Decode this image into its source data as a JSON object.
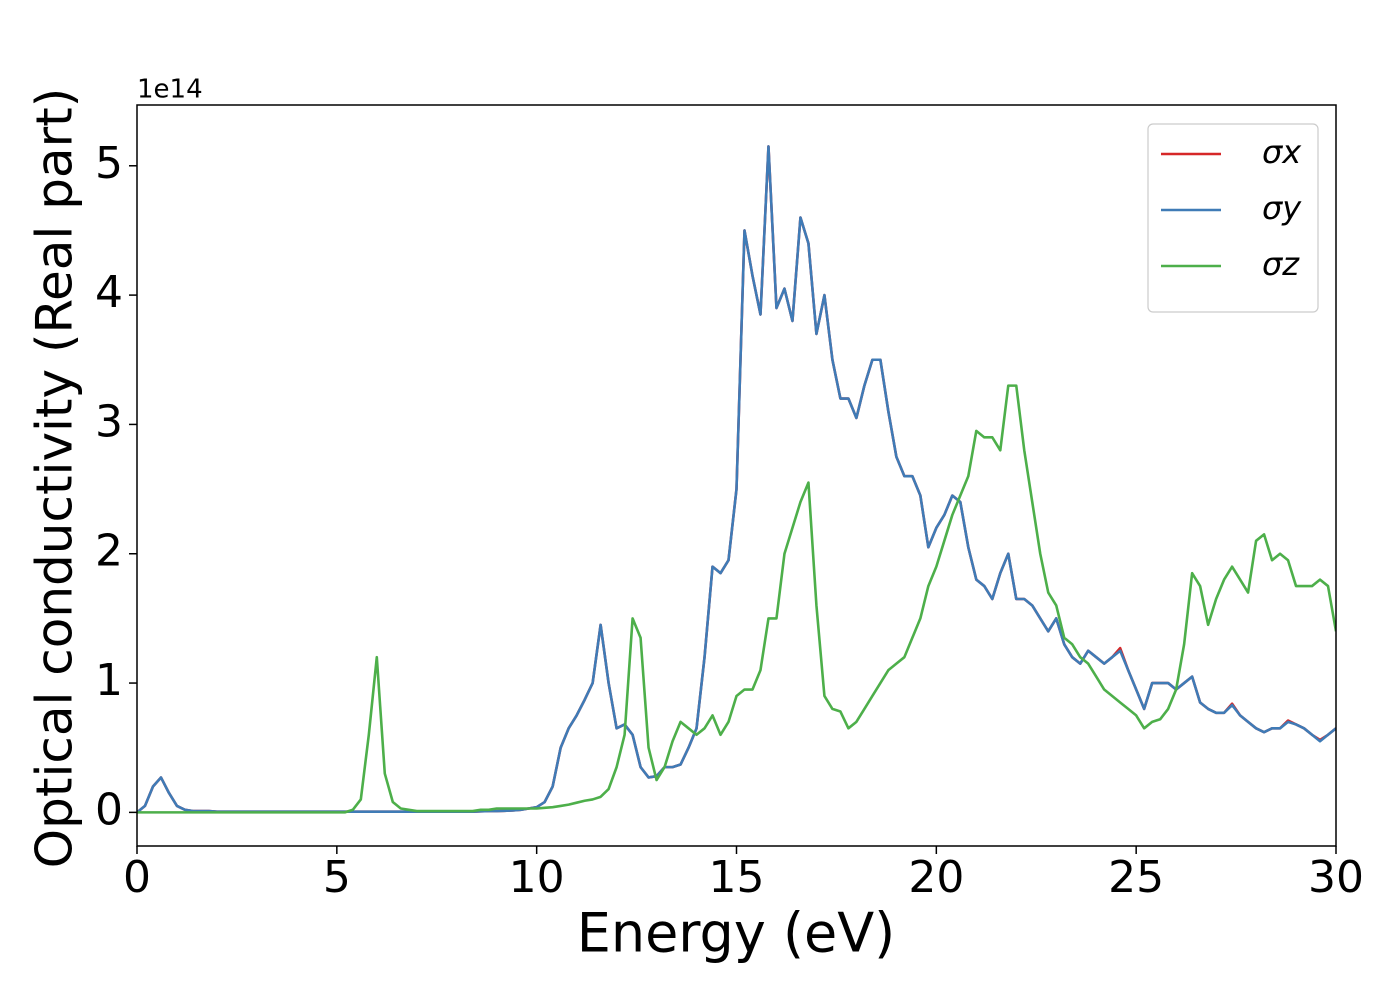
{
  "chart_data": {
    "type": "line",
    "xlabel": "Energy (eV)",
    "ylabel": "Optical conductivity (Real part)",
    "offset_label": "1e14",
    "xlim": [
      0,
      30
    ],
    "ylim": [
      -0.26,
      5.47
    ],
    "xticks": [
      0,
      5,
      10,
      15,
      20,
      25,
      30
    ],
    "yticks": [
      0,
      1,
      2,
      3,
      4,
      5
    ],
    "legend": "upper right",
    "x": [
      0,
      0.2,
      0.4,
      0.6,
      0.8,
      1,
      1.2,
      1.4,
      1.6,
      1.8,
      2,
      2.2,
      2.4,
      2.6,
      2.8,
      3,
      3.2,
      3.4,
      3.6,
      3.8,
      4,
      4.2,
      4.4,
      4.6,
      4.8,
      5,
      5.2,
      5.4,
      5.6,
      5.8,
      6,
      6.2,
      6.4,
      6.6,
      6.8,
      7,
      7.2,
      7.4,
      7.6,
      7.8,
      8,
      8.2,
      8.4,
      8.6,
      8.8,
      9,
      9.2,
      9.4,
      9.6,
      9.8,
      10,
      10.2,
      10.4,
      10.6,
      10.8,
      11,
      11.2,
      11.4,
      11.6,
      11.8,
      12,
      12.2,
      12.4,
      12.6,
      12.8,
      13,
      13.2,
      13.4,
      13.6,
      13.8,
      14,
      14.2,
      14.4,
      14.6,
      14.8,
      15,
      15.2,
      15.4,
      15.6,
      15.8,
      16,
      16.2,
      16.4,
      16.6,
      16.8,
      17,
      17.2,
      17.4,
      17.6,
      17.8,
      18,
      18.2,
      18.4,
      18.6,
      18.8,
      19,
      19.2,
      19.4,
      19.6,
      19.8,
      20,
      20.2,
      20.4,
      20.6,
      20.8,
      21,
      21.2,
      21.4,
      21.6,
      21.8,
      22,
      22.2,
      22.4,
      22.6,
      22.8,
      23,
      23.2,
      23.4,
      23.6,
      23.8,
      24,
      24.2,
      24.4,
      24.6,
      24.8,
      25,
      25.2,
      25.4,
      25.6,
      25.8,
      26,
      26.2,
      26.4,
      26.6,
      26.8,
      27,
      27.2,
      27.4,
      27.6,
      27.8,
      28,
      28.2,
      28.4,
      28.6,
      28.8,
      29,
      29.2,
      29.4,
      29.6,
      29.8,
      30
    ],
    "series": [
      {
        "name": "σx",
        "color": "#d62728",
        "values": [
          0,
          0.05,
          0.2,
          0.27,
          0.15,
          0.05,
          0.02,
          0.01,
          0.01,
          0.01,
          0.005,
          0.005,
          0.005,
          0.005,
          0.005,
          0.005,
          0.005,
          0.005,
          0.005,
          0.005,
          0.005,
          0.005,
          0.005,
          0.005,
          0.005,
          0.005,
          0.005,
          0.005,
          0.005,
          0.005,
          0.005,
          0.005,
          0.005,
          0.005,
          0.005,
          0.005,
          0.005,
          0.005,
          0.005,
          0.005,
          0.005,
          0.005,
          0.005,
          0.008,
          0.01,
          0.01,
          0.012,
          0.015,
          0.02,
          0.03,
          0.04,
          0.08,
          0.2,
          0.5,
          0.65,
          0.75,
          0.87,
          1,
          1.45,
          1,
          0.65,
          0.68,
          0.6,
          0.35,
          0.27,
          0.28,
          0.35,
          0.35,
          0.37,
          0.5,
          0.65,
          1.2,
          1.9,
          1.85,
          1.95,
          2.5,
          4.5,
          4.15,
          3.85,
          5.15,
          3.9,
          4.05,
          3.8,
          4.6,
          4.4,
          3.7,
          4,
          3.5,
          3.2,
          3.2,
          3.05,
          3.3,
          3.5,
          3.5,
          3.1,
          2.75,
          2.6,
          2.6,
          2.45,
          2.05,
          2.2,
          2.3,
          2.45,
          2.4,
          2.05,
          1.8,
          1.75,
          1.65,
          1.85,
          2,
          1.65,
          1.65,
          1.6,
          1.5,
          1.4,
          1.5,
          1.3,
          1.2,
          1.15,
          1.25,
          1.2,
          1.15,
          1.2,
          1.27,
          1.1,
          0.95,
          0.8,
          1,
          1,
          1,
          0.95,
          1,
          1.05,
          0.85,
          0.8,
          0.77,
          0.77,
          0.84,
          0.75,
          0.7,
          0.65,
          0.62,
          0.65,
          0.65,
          0.71,
          0.68,
          0.65,
          0.6,
          0.56,
          0.6,
          0.65
        ]
      },
      {
        "name": "σy",
        "color": "#3f7bb6",
        "values": [
          0,
          0.05,
          0.2,
          0.27,
          0.15,
          0.05,
          0.02,
          0.01,
          0.01,
          0.01,
          0.005,
          0.005,
          0.005,
          0.005,
          0.005,
          0.005,
          0.005,
          0.005,
          0.005,
          0.005,
          0.005,
          0.005,
          0.005,
          0.005,
          0.005,
          0.005,
          0.005,
          0.005,
          0.005,
          0.005,
          0.005,
          0.005,
          0.005,
          0.005,
          0.005,
          0.005,
          0.005,
          0.005,
          0.005,
          0.005,
          0.005,
          0.005,
          0.005,
          0.008,
          0.01,
          0.01,
          0.012,
          0.015,
          0.02,
          0.03,
          0.04,
          0.08,
          0.2,
          0.5,
          0.65,
          0.75,
          0.87,
          1,
          1.45,
          1,
          0.65,
          0.68,
          0.6,
          0.35,
          0.27,
          0.28,
          0.35,
          0.35,
          0.37,
          0.5,
          0.65,
          1.2,
          1.9,
          1.85,
          1.95,
          2.5,
          4.5,
          4.15,
          3.85,
          5.15,
          3.9,
          4.05,
          3.8,
          4.6,
          4.4,
          3.7,
          4,
          3.5,
          3.2,
          3.2,
          3.05,
          3.3,
          3.5,
          3.5,
          3.1,
          2.75,
          2.6,
          2.6,
          2.45,
          2.05,
          2.2,
          2.3,
          2.45,
          2.4,
          2.05,
          1.8,
          1.75,
          1.65,
          1.85,
          2,
          1.65,
          1.65,
          1.6,
          1.5,
          1.4,
          1.5,
          1.3,
          1.2,
          1.15,
          1.25,
          1.2,
          1.15,
          1.2,
          1.25,
          1.1,
          0.95,
          0.8,
          1,
          1,
          1,
          0.95,
          1,
          1.05,
          0.85,
          0.8,
          0.77,
          0.77,
          0.83,
          0.75,
          0.7,
          0.65,
          0.62,
          0.65,
          0.65,
          0.7,
          0.68,
          0.65,
          0.6,
          0.55,
          0.6,
          0.65
        ]
      },
      {
        "name": "σz",
        "color": "#4daf4a",
        "values": [
          0,
          0,
          0,
          0,
          0,
          0,
          0,
          0,
          0,
          0,
          0,
          0,
          0,
          0,
          0,
          0,
          0,
          0,
          0,
          0,
          0,
          0,
          0,
          0,
          0,
          0,
          0,
          0.02,
          0.1,
          0.6,
          1.2,
          0.3,
          0.08,
          0.03,
          0.02,
          0.01,
          0.01,
          0.01,
          0.01,
          0.01,
          0.01,
          0.01,
          0.01,
          0.02,
          0.02,
          0.03,
          0.03,
          0.03,
          0.03,
          0.03,
          0.03,
          0.035,
          0.04,
          0.05,
          0.06,
          0.075,
          0.09,
          0.1,
          0.12,
          0.18,
          0.35,
          0.6,
          1.5,
          1.35,
          0.5,
          0.25,
          0.35,
          0.55,
          0.7,
          0.65,
          0.6,
          0.65,
          0.75,
          0.6,
          0.7,
          0.9,
          0.95,
          0.95,
          1.1,
          1.5,
          1.5,
          2,
          2.2,
          2.4,
          2.55,
          1.6,
          0.9,
          0.8,
          0.78,
          0.65,
          0.7,
          0.8,
          0.9,
          1,
          1.1,
          1.15,
          1.2,
          1.35,
          1.5,
          1.75,
          1.9,
          2.1,
          2.3,
          2.45,
          2.6,
          2.95,
          2.9,
          2.9,
          2.8,
          3.3,
          3.3,
          2.8,
          2.4,
          2,
          1.7,
          1.6,
          1.35,
          1.3,
          1.2,
          1.15,
          1.05,
          0.95,
          0.9,
          0.85,
          0.8,
          0.75,
          0.65,
          0.7,
          0.72,
          0.8,
          0.95,
          1.3,
          1.85,
          1.75,
          1.45,
          1.65,
          1.8,
          1.9,
          1.8,
          1.7,
          2.1,
          2.15,
          1.95,
          2,
          1.95,
          1.75,
          1.75,
          1.75,
          1.8,
          1.75,
          1.4
        ]
      }
    ]
  }
}
